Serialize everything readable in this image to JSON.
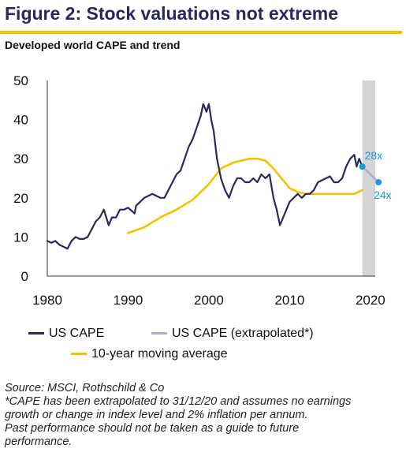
{
  "title": "Figure 2: Stock valuations not extreme",
  "subtitle": "Developed world CAPE and trend",
  "colors": {
    "title": "#2a2760",
    "accent_rule": "#f2c400",
    "us_cape": "#2b2761",
    "extrapolated": "#b0abcf",
    "moving_average": "#f2c400",
    "forecast_band": "#d4d4d4",
    "end_marker": "#1a9ad6"
  },
  "legend": [
    {
      "label": "US CAPE",
      "color": "#2b2761"
    },
    {
      "label": "US CAPE (extrapolated*)",
      "color": "#b0abcf"
    },
    {
      "label": "10-year moving average",
      "color": "#f2c400"
    }
  ],
  "notes": [
    "Source: MSCI, Rothschild & Co",
    "*CAPE has been extrapolated to 31/12/20 and assumes no earnings",
    "growth or change in index level and 2% inflation per annum.",
    "Past performance should not be taken as a guide to future",
    "performance."
  ],
  "chart_data": {
    "type": "line",
    "xlim": [
      1980,
      2020.6
    ],
    "ylim": [
      0,
      50
    ],
    "x_ticks": [
      "1980",
      "1990",
      "2000",
      "2010",
      "2020"
    ],
    "y_ticks": [
      "0",
      "10",
      "20",
      "30",
      "40",
      "50"
    ],
    "forecast_band": [
      2019,
      2021
    ],
    "annotations": [
      {
        "text": "28x",
        "x": 2019.0,
        "y": 28
      },
      {
        "text": "24x",
        "x": 2021.0,
        "y": 24
      }
    ],
    "series": [
      {
        "name": "US CAPE",
        "x": [
          1980.0,
          1980.5,
          1981.0,
          1981.5,
          1982.0,
          1982.5,
          1983.0,
          1983.5,
          1984.0,
          1984.5,
          1985.0,
          1985.5,
          1986.0,
          1986.5,
          1987.0,
          1987.6,
          1988.0,
          1988.5,
          1989.0,
          1989.5,
          1990.0,
          1990.8,
          1991.0,
          1991.5,
          1992.0,
          1992.5,
          1993.0,
          1993.5,
          1994.0,
          1994.5,
          1995.0,
          1995.5,
          1996.0,
          1996.5,
          1997.0,
          1997.5,
          1998.0,
          1998.5,
          1999.0,
          1999.3,
          1999.7,
          2000.0,
          2000.3,
          2000.6,
          2001.0,
          2001.5,
          2002.0,
          2002.5,
          2003.0,
          2003.5,
          2004.0,
          2004.5,
          2005.0,
          2005.5,
          2006.0,
          2006.5,
          2007.0,
          2007.5,
          2008.0,
          2008.4,
          2008.8,
          2009.2,
          2009.6,
          2010.0,
          2010.5,
          2011.0,
          2011.5,
          2012.0,
          2012.5,
          2013.0,
          2013.5,
          2014.0,
          2014.5,
          2015.0,
          2015.5,
          2016.0,
          2016.5,
          2017.0,
          2017.5,
          2018.0,
          2018.3,
          2018.6,
          2019.0
        ],
        "y": [
          9,
          8.5,
          9,
          8,
          7.5,
          7,
          9,
          10,
          9.5,
          9.5,
          10,
          12,
          14,
          15,
          17,
          13,
          15,
          15,
          17,
          17,
          17.5,
          16,
          18,
          19,
          20,
          20.5,
          21,
          20.5,
          20,
          20,
          22,
          24,
          26,
          27,
          30,
          33,
          35,
          38,
          41,
          44,
          42,
          44,
          40,
          37,
          30,
          25,
          22,
          20,
          23,
          25,
          25,
          24,
          24,
          25,
          24,
          26,
          25,
          26,
          20,
          17,
          13,
          15,
          17,
          19,
          20,
          21,
          20,
          21,
          21,
          22,
          24,
          24.5,
          25,
          25.5,
          24,
          24,
          25,
          28,
          30,
          31,
          28,
          30,
          28
        ]
      },
      {
        "name": "US CAPE (extrapolated*)",
        "x": [
          2019.0,
          2021.0
        ],
        "y": [
          28,
          24
        ]
      },
      {
        "name": "10-year moving average",
        "x": [
          1990.0,
          1992.0,
          1994.0,
          1996.0,
          1998.0,
          2000.0,
          2001.5,
          2003.0,
          2004.0,
          2005.0,
          2006.0,
          2007.0,
          2008.0,
          2009.0,
          2010.0,
          2011.0,
          2012.0,
          2013.0,
          2014.0,
          2015.0,
          2016.0,
          2017.0,
          2018.0,
          2019.0
        ],
        "y": [
          11,
          12.5,
          15,
          17,
          19.5,
          23.5,
          27.5,
          29,
          29.5,
          30,
          30,
          29.5,
          27.5,
          25,
          22.5,
          21.5,
          21,
          21,
          21,
          21,
          21,
          21,
          21,
          22
        ]
      }
    ]
  }
}
